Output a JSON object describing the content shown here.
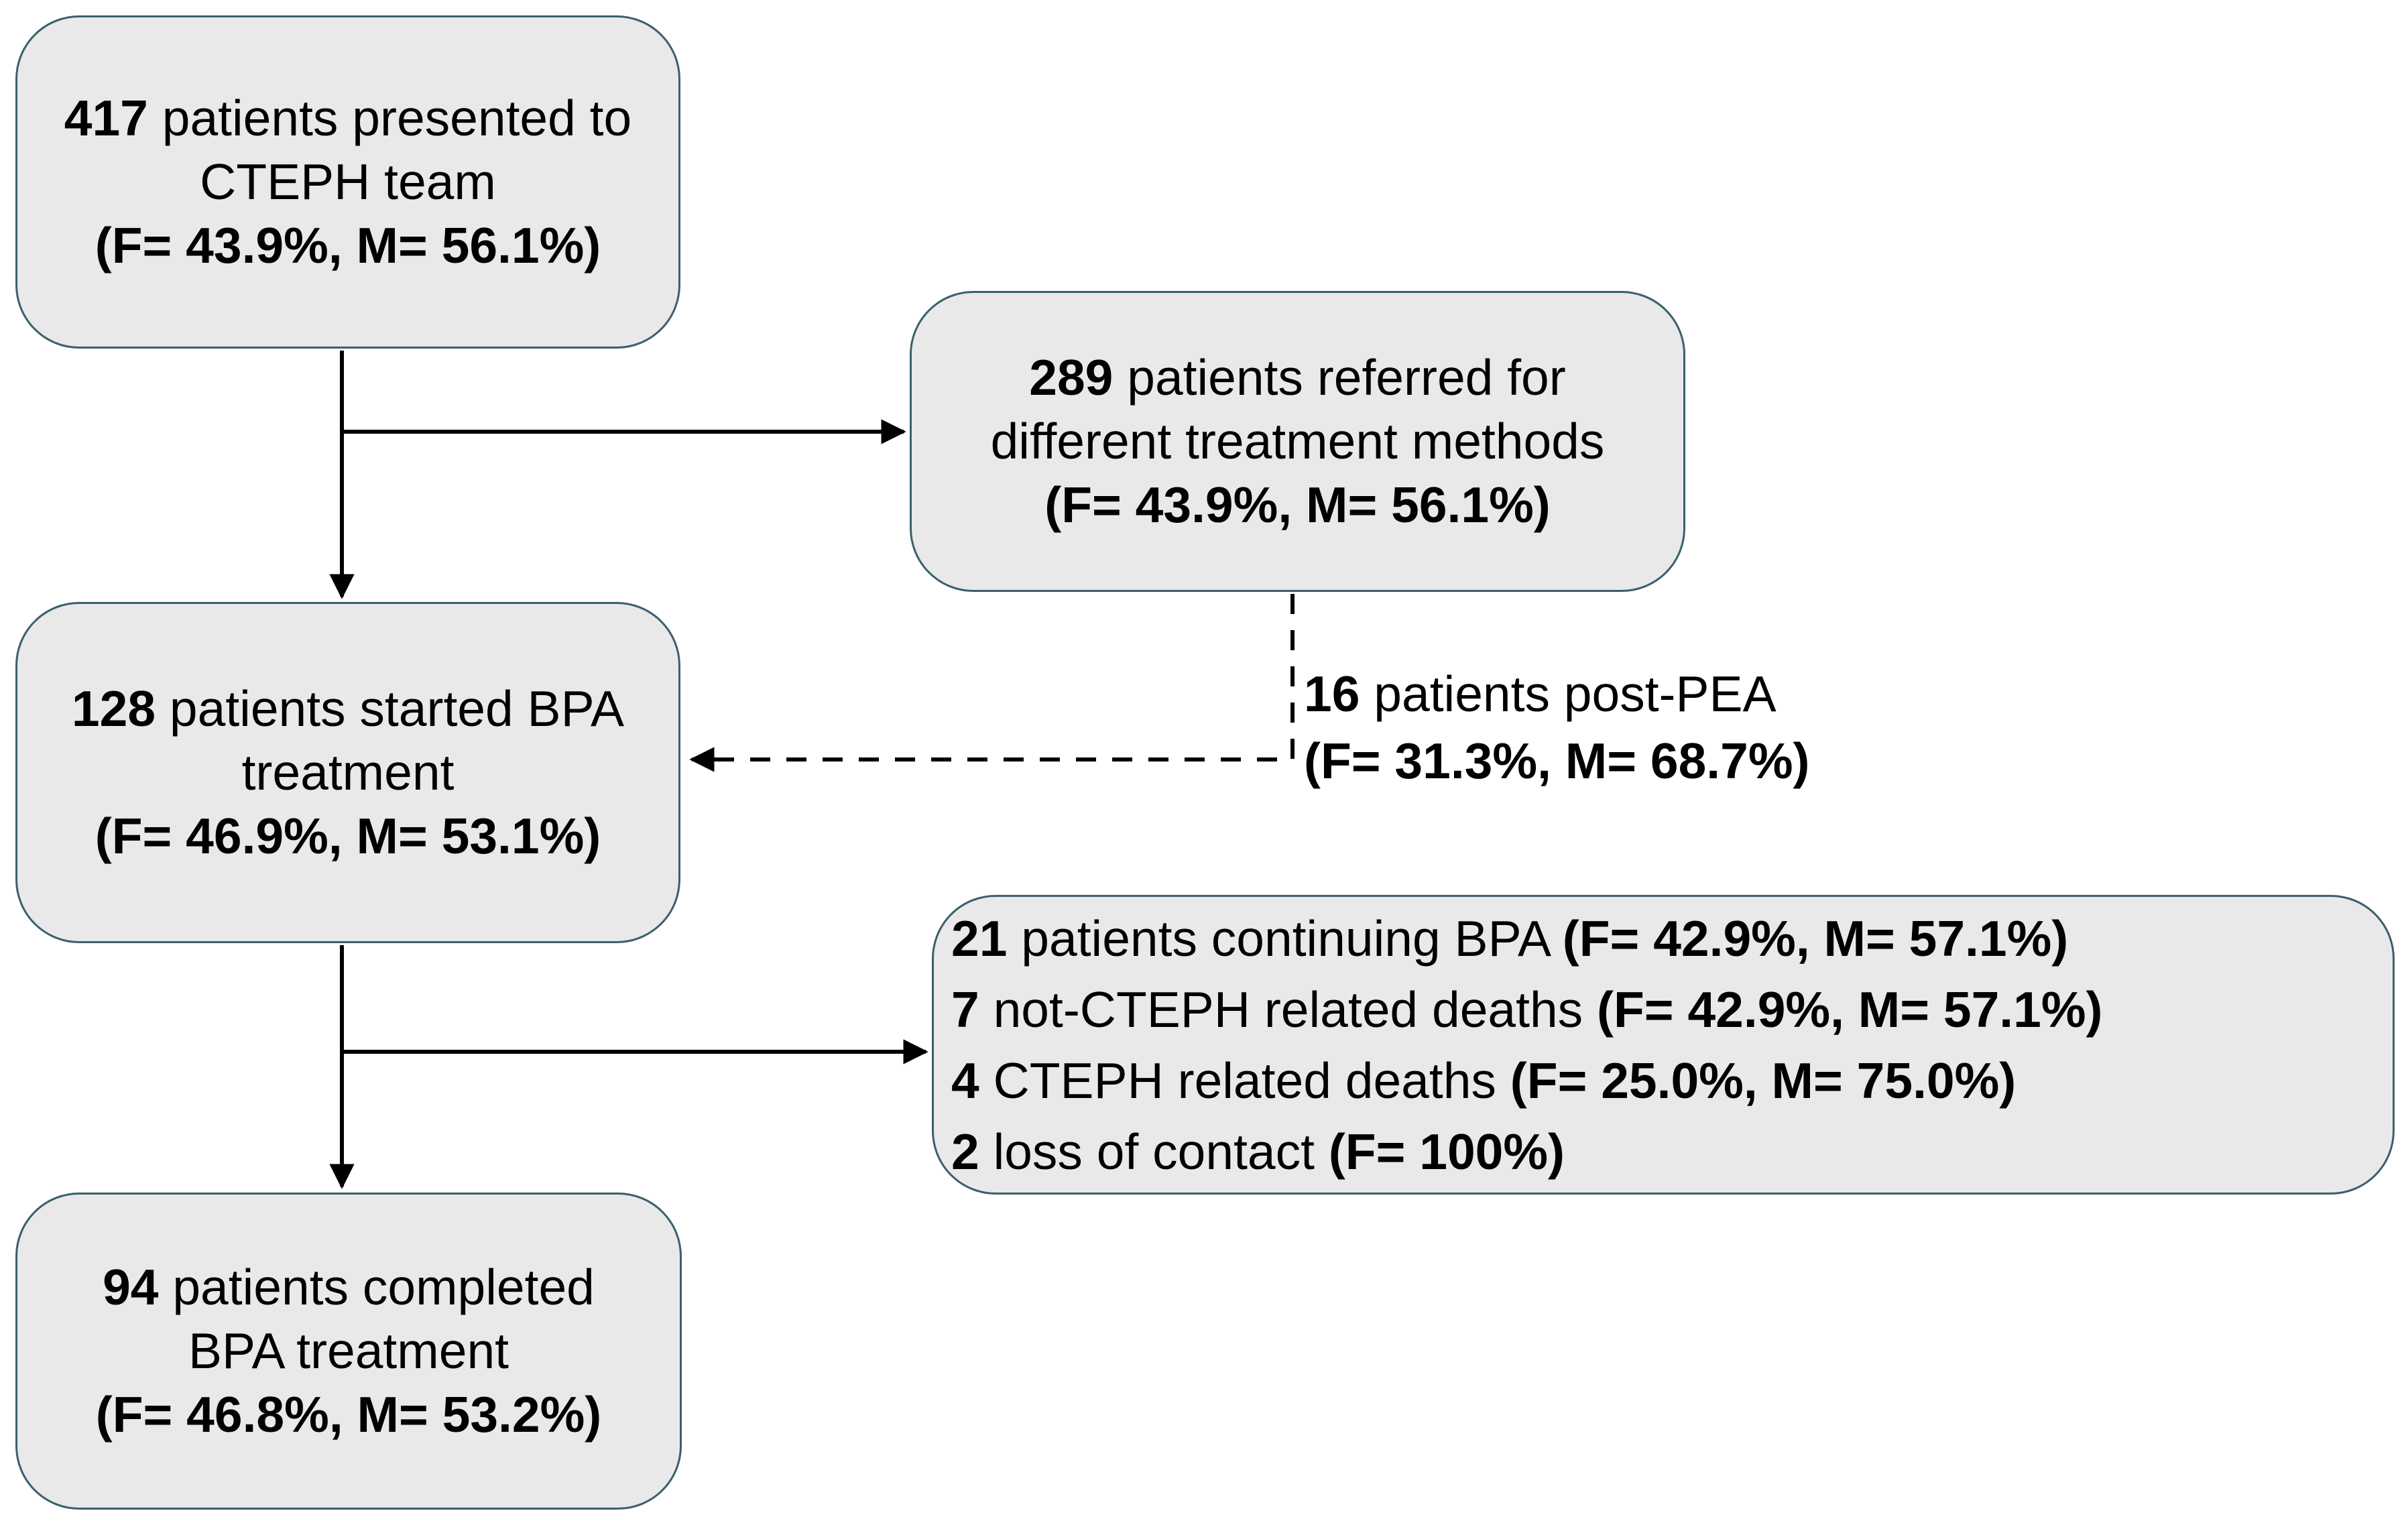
{
  "styles": {
    "background": "#ffffff",
    "box_fill": "#e9e9e9",
    "box_border": "#3b5f6d",
    "arrow_color": "#000000",
    "text_color": "#000000"
  },
  "nodes": {
    "presented": {
      "lines": [
        [
          {
            "t": "417 ",
            "b": true
          },
          {
            "t": "patients presented to",
            "b": false
          }
        ],
        [
          {
            "t": "CTEPH team",
            "b": false
          }
        ],
        [
          {
            "t": "(F= 43.9%, M= 56.1%)",
            "b": true
          }
        ]
      ]
    },
    "referred": {
      "lines": [
        [
          {
            "t": "289 ",
            "b": true
          },
          {
            "t": "patients referred for",
            "b": false
          }
        ],
        [
          {
            "t": "different treatment methods",
            "b": false
          }
        ],
        [
          {
            "t": "(F= 43.9%, M= 56.1%)",
            "b": true
          }
        ]
      ]
    },
    "started": {
      "lines": [
        [
          {
            "t": "128 ",
            "b": true
          },
          {
            "t": "patients started BPA",
            "b": false
          }
        ],
        [
          {
            "t": "treatment",
            "b": false
          }
        ],
        [
          {
            "t": "(F= 46.9%, M= 53.1%)",
            "b": true
          }
        ]
      ]
    },
    "outcomes": {
      "lines": [
        [
          {
            "t": "21 ",
            "b": true
          },
          {
            "t": "patients continuing BPA ",
            "b": false
          },
          {
            "t": "(F= 42.9%, M= 57.1%)",
            "b": true
          }
        ],
        [
          {
            "t": "7 ",
            "b": true
          },
          {
            "t": "not-CTEPH related deaths ",
            "b": false
          },
          {
            "t": "(F= 42.9%, M= 57.1%)",
            "b": true
          }
        ],
        [
          {
            "t": "4 ",
            "b": true
          },
          {
            "t": "CTEPH related deaths ",
            "b": false
          },
          {
            "t": "(F= 25.0%, M= 75.0%)",
            "b": true
          }
        ],
        [
          {
            "t": "2 ",
            "b": true
          },
          {
            "t": "loss of contact ",
            "b": false
          },
          {
            "t": "(F= 100%)",
            "b": true
          }
        ]
      ]
    },
    "completed": {
      "lines": [
        [
          {
            "t": "94 ",
            "b": true
          },
          {
            "t": "patients completed",
            "b": false
          }
        ],
        [
          {
            "t": "BPA treatment",
            "b": false
          }
        ],
        [
          {
            "t": "(F= 46.8%, M= 53.2%)",
            "b": true
          }
        ]
      ]
    },
    "postpea": {
      "lines": [
        [
          {
            "t": "16 ",
            "b": true
          },
          {
            "t": "patients post-PEA",
            "b": false
          }
        ],
        [
          {
            "t": "(F= 31.3%, M= 68.7%)",
            "b": true
          }
        ]
      ]
    }
  }
}
